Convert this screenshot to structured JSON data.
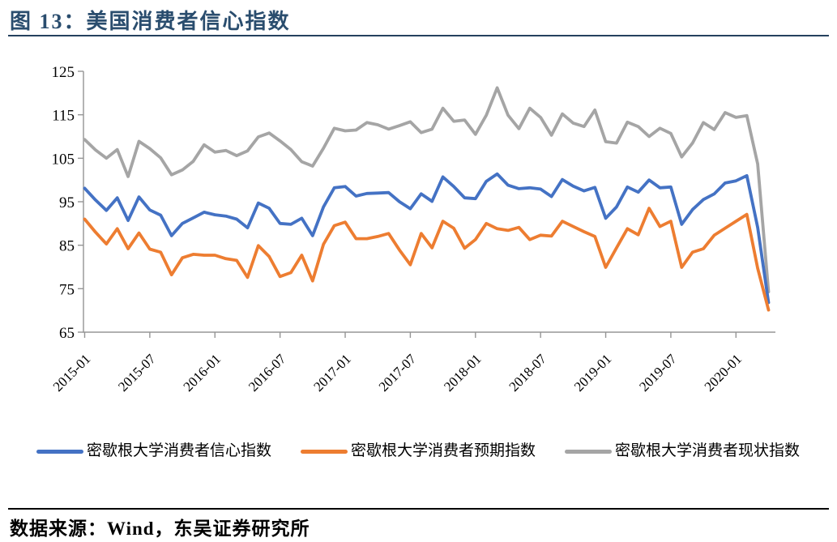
{
  "header": {
    "title": "图 13：美国消费者信心指数"
  },
  "footer": {
    "source": "数据来源：Wind，东吴证券研究所"
  },
  "chart_data": {
    "type": "line",
    "title": "图 13：美国消费者信心指数",
    "xlabel": "",
    "ylabel": "",
    "ylim": [
      65,
      125
    ],
    "yticks": [
      65,
      75,
      85,
      95,
      105,
      115,
      125
    ],
    "grid": false,
    "legend_position": "bottom",
    "axis_color": "#959595",
    "x": [
      "2015-01",
      "2015-02",
      "2015-03",
      "2015-04",
      "2015-05",
      "2015-06",
      "2015-07",
      "2015-08",
      "2015-09",
      "2015-10",
      "2015-11",
      "2015-12",
      "2016-01",
      "2016-02",
      "2016-03",
      "2016-04",
      "2016-05",
      "2016-06",
      "2016-07",
      "2016-08",
      "2016-09",
      "2016-10",
      "2016-11",
      "2016-12",
      "2017-01",
      "2017-02",
      "2017-03",
      "2017-04",
      "2017-05",
      "2017-06",
      "2017-07",
      "2017-08",
      "2017-09",
      "2017-10",
      "2017-11",
      "2017-12",
      "2018-01",
      "2018-02",
      "2018-03",
      "2018-04",
      "2018-05",
      "2018-06",
      "2018-07",
      "2018-08",
      "2018-09",
      "2018-10",
      "2018-11",
      "2018-12",
      "2019-01",
      "2019-02",
      "2019-03",
      "2019-04",
      "2019-05",
      "2019-06",
      "2019-07",
      "2019-08",
      "2019-09",
      "2019-10",
      "2019-11",
      "2019-12",
      "2020-01",
      "2020-02",
      "2020-03",
      "2020-04"
    ],
    "x_tick_labels": [
      "2015-01",
      "2015-07",
      "2016-01",
      "2016-07",
      "2017-01",
      "2017-07",
      "2018-01",
      "2018-07",
      "2019-01",
      "2019-07",
      "2020-01"
    ],
    "x_tick_every": 6,
    "series": [
      {
        "name": "密歇根大学消费者信心指数",
        "color": "#4472C4",
        "values": [
          98.1,
          95.4,
          93.0,
          95.9,
          90.7,
          96.1,
          93.1,
          91.9,
          87.2,
          90.0,
          91.3,
          92.6,
          92.0,
          91.7,
          91.0,
          89.0,
          94.7,
          93.5,
          90.0,
          89.8,
          91.2,
          87.2,
          93.8,
          98.2,
          98.5,
          96.3,
          96.9,
          97.0,
          97.1,
          95.0,
          93.4,
          96.8,
          95.1,
          100.7,
          98.5,
          95.9,
          95.7,
          99.7,
          101.4,
          98.8,
          98.0,
          98.2,
          97.9,
          96.2,
          100.1,
          98.6,
          97.5,
          98.3,
          91.2,
          93.8,
          98.4,
          97.2,
          100.0,
          98.2,
          98.4,
          89.8,
          93.2,
          95.5,
          96.8,
          99.3,
          99.8,
          101.0,
          89.1,
          71.8
        ]
      },
      {
        "name": "密歇根大学消费者预期指数",
        "color": "#ED7D31",
        "values": [
          91.0,
          88.0,
          85.3,
          88.8,
          84.2,
          87.8,
          84.1,
          83.4,
          78.2,
          82.1,
          82.9,
          82.7,
          82.7,
          81.9,
          81.5,
          77.6,
          84.9,
          82.4,
          77.8,
          78.7,
          82.7,
          76.8,
          85.2,
          89.5,
          90.3,
          86.5,
          86.5,
          87.0,
          87.7,
          83.9,
          80.5,
          87.7,
          84.4,
          90.5,
          88.9,
          84.3,
          86.3,
          90.0,
          88.8,
          88.4,
          89.1,
          86.3,
          87.3,
          87.1,
          90.5,
          89.3,
          88.1,
          87.0,
          79.9,
          84.4,
          88.8,
          87.4,
          93.5,
          89.3,
          90.5,
          79.9,
          83.4,
          84.2,
          87.3,
          88.9,
          90.5,
          92.1,
          79.7,
          70.1
        ]
      },
      {
        "name": "密歇根大学消费者现状指数",
        "color": "#A5A5A5",
        "values": [
          109.3,
          106.9,
          105.0,
          107.0,
          100.8,
          108.9,
          107.2,
          105.1,
          101.2,
          102.3,
          104.3,
          108.1,
          106.4,
          106.8,
          105.6,
          106.7,
          109.9,
          110.8,
          109.0,
          107.0,
          104.2,
          103.2,
          107.3,
          111.9,
          111.3,
          111.5,
          113.2,
          112.7,
          111.7,
          112.5,
          113.4,
          110.9,
          111.7,
          116.5,
          113.5,
          113.8,
          110.5,
          114.9,
          121.2,
          114.9,
          111.8,
          116.5,
          114.4,
          110.3,
          115.2,
          113.1,
          112.3,
          116.1,
          108.8,
          108.5,
          113.3,
          112.3,
          110.0,
          111.9,
          110.7,
          105.3,
          108.5,
          113.2,
          111.6,
          115.5,
          114.4,
          114.8,
          103.7,
          74.3
        ]
      }
    ]
  }
}
